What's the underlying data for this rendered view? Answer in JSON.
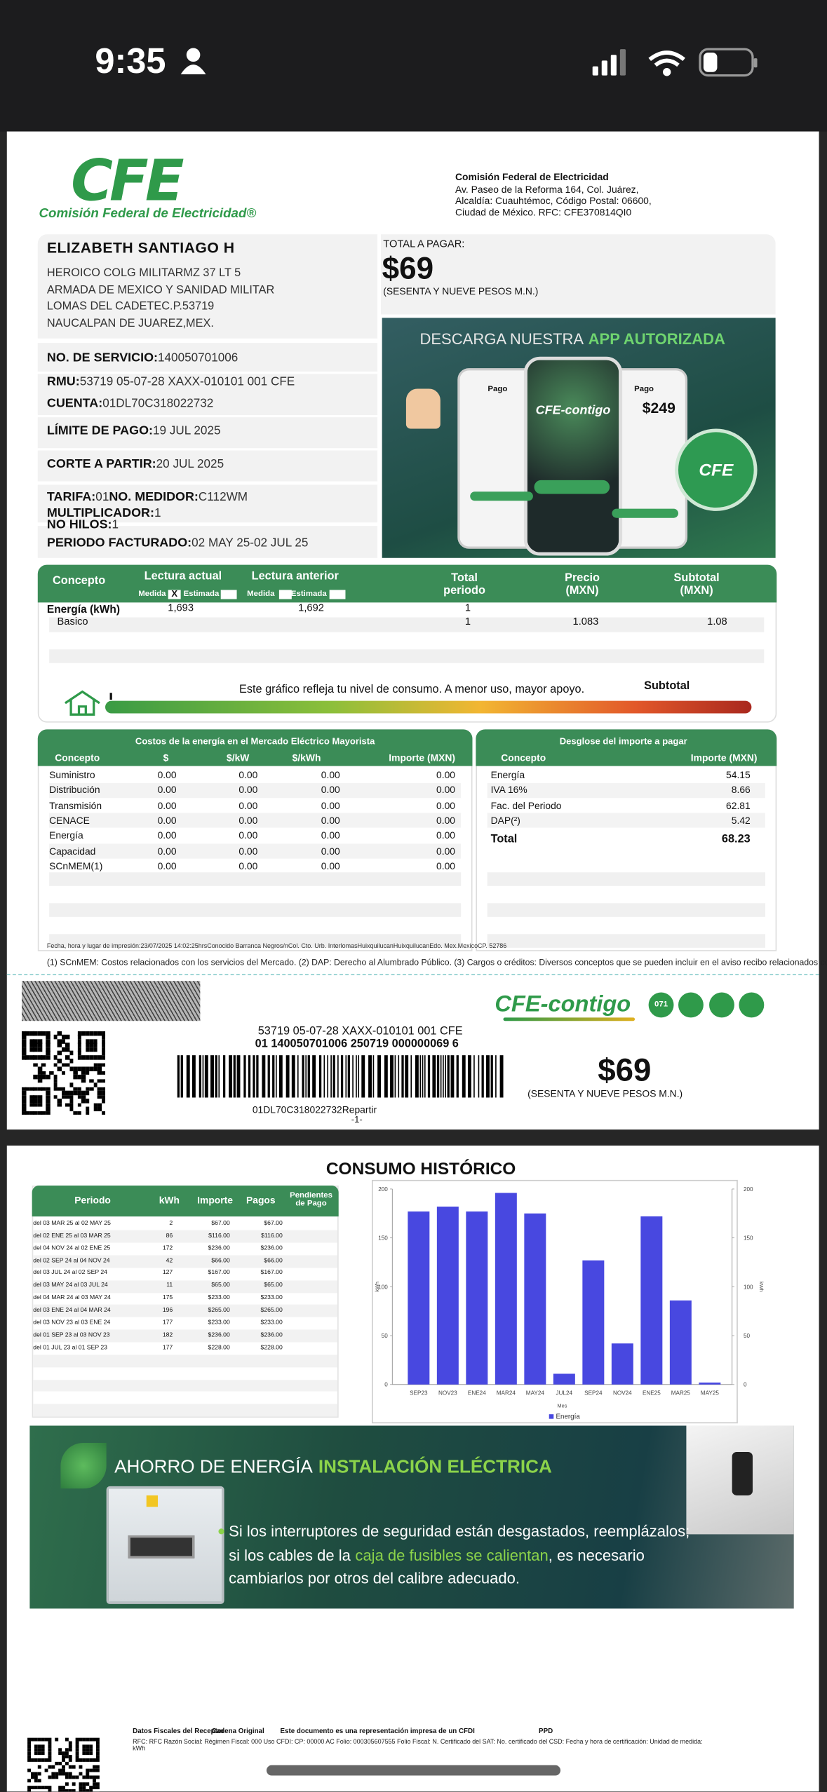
{
  "status_bar": {
    "time": "9:35"
  },
  "header": {
    "logo": "CFE",
    "logo_caption": "Comisión Federal de Electricidad®",
    "company": "Comisión Federal de Electricidad",
    "address": [
      "Av. Paseo de la Reforma 164, Col. Juárez,",
      "Alcaldía: Cuauhtémoc, Código Postal: 06600,",
      "Ciudad de México. RFC: CFE370814QI0"
    ]
  },
  "customer": {
    "name": "ELIZABETH SANTIAGO H",
    "address": [
      "HEROICO COLG MILITARMZ 37 LT 5",
      "ARMADA DE MEXICO Y SANIDAD MILITAR",
      "LOMAS DEL CADETEC.P.53719",
      "NAUCALPAN DE JUAREZ,MEX."
    ]
  },
  "total": {
    "label": "TOTAL A PAGAR:",
    "amount": "$69",
    "in_words": "(SESENTA Y NUEVE PESOS  M.N.)"
  },
  "service": {
    "number": {
      "label": "NO. DE SERVICIO:",
      "value": "140050701006"
    },
    "rmu": {
      "label": "RMU:",
      "value": "53719 05-07-28 XAXX-010101 001 CFE"
    },
    "account": {
      "label": "CUENTA:",
      "value": "01DL70C318022732"
    },
    "due_date": {
      "label": "LÍMITE DE PAGO:",
      "value": "19 JUL 2025"
    },
    "cutoff": {
      "label": "CORTE A PARTIR:",
      "value": "20 JUL 2025"
    },
    "tariff": {
      "label": "TARIFA:",
      "value": "01"
    },
    "meter": {
      "label": "NO. MEDIDOR:",
      "value": "C112WM"
    },
    "multiplier": {
      "label": "MULTIPLICADOR:",
      "value": "1"
    },
    "wires": {
      "label": "NO HILOS:",
      "value": "1"
    },
    "period": {
      "label": "PERIODO FACTURADO:",
      "value": "02 MAY 25-02 JUL 25"
    }
  },
  "app_ad": {
    "title": "DESCARGA NUESTRA",
    "title_highlight": "APP AUTORIZADA",
    "app_name": "CFE-contigo",
    "screen_titles": [
      "Pago",
      "Pago"
    ],
    "price": "$249",
    "badge": "CFE"
  },
  "consumption": {
    "headers": [
      "Concepto",
      "Lectura actual",
      "Lectura anterior",
      "Total periodo",
      "Precio (MXN)",
      "Subtotal (MXN)"
    ],
    "subheaders": [
      "Medida",
      "Estimada",
      "Medida",
      "Estimada"
    ],
    "reading_type_mark": "X",
    "rows": [
      {
        "concept": "Energía (kWh)",
        "current": "1,693",
        "previous": "1,692",
        "total": "1"
      },
      {
        "concept": "Basico",
        "total": "1",
        "price": "1.083",
        "subtotal": "1.08"
      }
    ]
  },
  "gauge": {
    "text": "Este gráfico refleja tu nivel de consumo. A menor uso, mayor apoyo.",
    "label": "Subtotal"
  },
  "market_costs": {
    "title": "Costos de la energía en el Mercado Eléctrico Mayorista",
    "headers": [
      "Concepto",
      "$",
      "$/kW",
      "$/kWh",
      "Importe (MXN)"
    ],
    "rows": [
      [
        "Suministro",
        "0.00",
        "0.00",
        "0.00",
        "0.00"
      ],
      [
        "Distribución",
        "0.00",
        "0.00",
        "0.00",
        "0.00"
      ],
      [
        "Transmisión",
        "0.00",
        "0.00",
        "0.00",
        "0.00"
      ],
      [
        "CENACE",
        "0.00",
        "0.00",
        "0.00",
        "0.00"
      ],
      [
        "Energía",
        "0.00",
        "0.00",
        "0.00",
        "0.00"
      ],
      [
        "Capacidad",
        "0.00",
        "0.00",
        "0.00",
        "0.00"
      ],
      [
        "SCnMEM(1)",
        "0.00",
        "0.00",
        "0.00",
        "0.00"
      ]
    ]
  },
  "breakdown": {
    "title": "Desglose del importe a pagar",
    "headers": [
      "Concepto",
      "Importe (MXN)"
    ],
    "rows": [
      [
        "Energía",
        "54.15"
      ],
      [
        "IVA 16%",
        "8.66"
      ],
      [
        "Fac. del Periodo",
        "62.81"
      ],
      [
        "DAP(²)",
        "5.42"
      ],
      [
        "Total",
        "68.23"
      ]
    ]
  },
  "print_info": "Fecha, hora y lugar de impresión:23/07/2025 14:02:25hrsConocido Barranca Negros/nCol. Cto. Urb. InterlomasHuixquilucanHuixquilucanEdo. Mex.MexicoCP. 52786",
  "notes": "(1) SCnMEM: Costos relacionados con los servicios del Mercado. (2) DAP: Derecho al Alumbrado Público. (3) Cargos o créditos: Diversos conceptos que se pueden incluir en el aviso recibo relacionados con el suministro.",
  "stub": {
    "app_logo": "CFE-contigo",
    "badge": "071",
    "rmu_line": "53719 05-07-28 XAXX-010101 001 CFE",
    "barcode_number": "01 140050701006 250719 000000069 6",
    "amount": "$69",
    "in_words": "(SESENTA Y NUEVE PESOS  M.N.)",
    "account_line": "01DL70C318022732Repartir",
    "page": "-1-"
  },
  "history": {
    "title": "CONSUMO HISTÓRICO",
    "headers": [
      "Periodo",
      "kWh",
      "Importe",
      "Pagos",
      "Pendientes de Pago"
    ],
    "rows": [
      [
        "del 03 MAR 25 al 02 MAY 25",
        "2",
        "$67.00",
        "$67.00"
      ],
      [
        "del 02 ENE 25 al 03 MAR 25",
        "86",
        "$116.00",
        "$116.00"
      ],
      [
        "del 04 NOV 24 al 02 ENE 25",
        "172",
        "$236.00",
        "$236.00"
      ],
      [
        "del 02 SEP 24 al 04 NOV 24",
        "42",
        "$66.00",
        "$66.00"
      ],
      [
        "del 03 JUL 24 al 02 SEP 24",
        "127",
        "$167.00",
        "$167.00"
      ],
      [
        "del 03 MAY 24 al 03 JUL 24",
        "11",
        "$65.00",
        "$65.00"
      ],
      [
        "del 04 MAR 24 al 03 MAY 24",
        "175",
        "$233.00",
        "$233.00"
      ],
      [
        "del 03 ENE 24 al 04 MAR 24",
        "196",
        "$265.00",
        "$265.00"
      ],
      [
        "del 03 NOV 23 al 03 ENE 24",
        "177",
        "$233.00",
        "$233.00"
      ],
      [
        "del 01 SEP 23 al 03 NOV 23",
        "182",
        "$236.00",
        "$236.00"
      ],
      [
        "del 01 JUL 23 al 01 SEP 23",
        "177",
        "$228.00",
        "$228.00"
      ]
    ]
  },
  "consumption_chart": {
    "type": "bar",
    "categories": [
      "SEP23",
      "NOV23",
      "ENE24",
      "MAR24",
      "MAY24",
      "JUL24",
      "SEP24",
      "NOV24",
      "ENE25",
      "MAR25",
      "MAY25"
    ],
    "series": [
      {
        "name": "Energía",
        "color": "#4848e0",
        "values": [
          177,
          182,
          177,
          196,
          175,
          11,
          127,
          42,
          172,
          86,
          2
        ]
      }
    ],
    "ylim": [
      0,
      200
    ],
    "yticks": [
      0,
      50,
      100,
      150,
      200
    ],
    "y2lim": [
      0,
      200
    ],
    "y2ticks": [
      0,
      50,
      100,
      150,
      200
    ],
    "x_label": "Mes",
    "y_label": "kWh",
    "y2_label": "kWh",
    "grid": false
  },
  "energy_ad": {
    "title": "AHORRO DE ENERGÍA",
    "title_highlight": "INSTALACIÓN ELÉCTRICA",
    "line1": "Si los interruptores de seguridad están desgastados, reemplázalos;",
    "line2": [
      "si los cables de la",
      "caja de fusibles se calientan",
      ", es necesario"
    ],
    "line3": "cambiarlos por otros del calibre adecuado."
  },
  "fiscal": {
    "headings": [
      "Datos Fiscales del Receptor",
      "Cadena Original",
      "Este documento es una representación impresa de un CFDI",
      "PPD"
    ],
    "details": "RFC: RFC Razón Social:  Régimen Fiscal: 000 Uso CFDI:  CP: 00000 AC Folio: 000305607555 Folio Fiscal:  N. Certificado del SAT:  No. certificado del CSD:  Fecha y hora de certificación:  Unidad de medida: kWh"
  }
}
